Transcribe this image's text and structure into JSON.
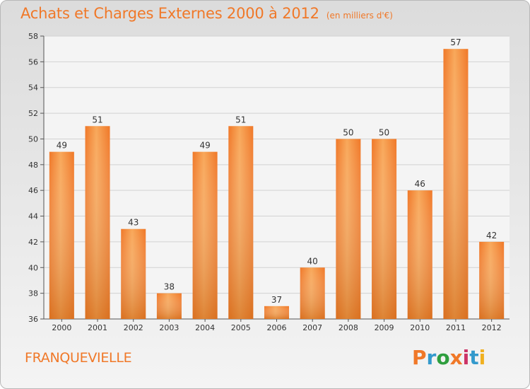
{
  "chart_data": {
    "type": "bar",
    "title": "Achats et Charges Externes 2000 à 2012",
    "subtitle": "(en milliers d'€)",
    "categories": [
      "2000",
      "2001",
      "2002",
      "2003",
      "2004",
      "2005",
      "2006",
      "2007",
      "2008",
      "2009",
      "2010",
      "2011",
      "2012"
    ],
    "values": [
      49,
      51,
      43,
      38,
      49,
      51,
      37,
      40,
      50,
      50,
      46,
      57,
      42
    ],
    "ylim": [
      36,
      58
    ],
    "yticks": [
      36,
      38,
      40,
      42,
      44,
      46,
      48,
      50,
      52,
      54,
      56,
      58
    ],
    "grid": true,
    "bar_color": "#f07828",
    "bar_color_light": "#f8a85a",
    "bar_color_dark": "#c86818"
  },
  "footer": {
    "town": "FRANQUEVIELLE",
    "logo": "Proxiti",
    "logo_colors": [
      "#f07828",
      "#3399cc",
      "#2e9e3e",
      "#f07828",
      "#cc3366",
      "#3399cc",
      "#f0b020"
    ]
  }
}
